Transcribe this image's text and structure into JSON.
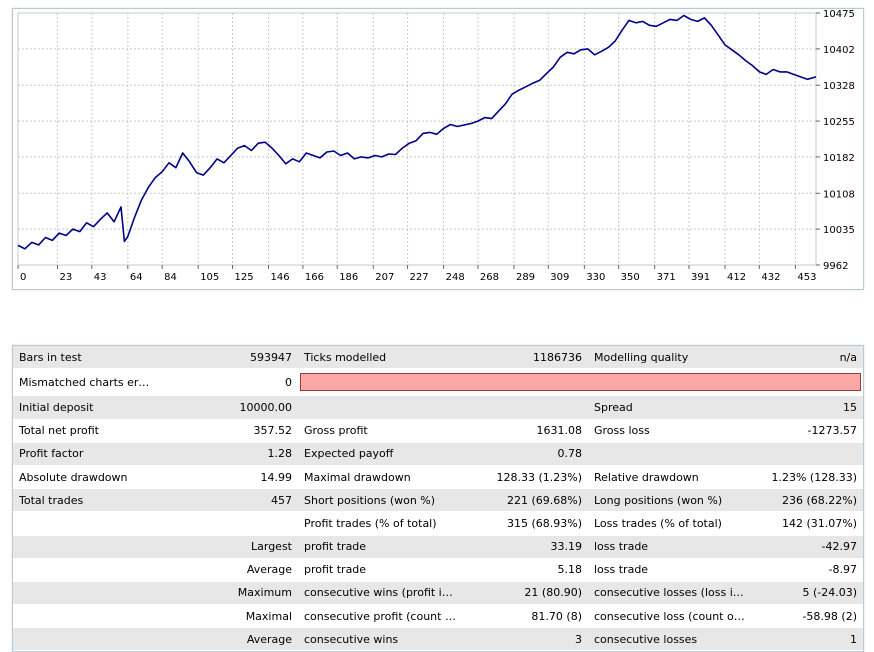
{
  "chart_data": {
    "type": "line",
    "x_ticks": [
      "0",
      "23",
      "43",
      "64",
      "84",
      "105",
      "125",
      "146",
      "166",
      "186",
      "207",
      "227",
      "248",
      "268",
      "289",
      "309",
      "330",
      "350",
      "371",
      "391",
      "412",
      "432",
      "453"
    ],
    "y_ticks": [
      "10475",
      "10402",
      "10328",
      "10255",
      "10182",
      "10108",
      "10035",
      "9962"
    ],
    "ylim": [
      9962,
      10475
    ],
    "xlim": [
      0,
      465
    ],
    "grid": true,
    "series": [
      {
        "color": "#00008b",
        "x": [
          0,
          4,
          8,
          12,
          16,
          20,
          24,
          28,
          32,
          36,
          40,
          44,
          48,
          52,
          56,
          60,
          62,
          64,
          68,
          72,
          76,
          80,
          84,
          88,
          92,
          96,
          100,
          104,
          108,
          112,
          116,
          120,
          124,
          128,
          132,
          136,
          140,
          144,
          148,
          152,
          156,
          160,
          164,
          168,
          172,
          176,
          180,
          184,
          188,
          192,
          196,
          200,
          204,
          208,
          212,
          216,
          220,
          224,
          228,
          232,
          236,
          240,
          244,
          248,
          252,
          256,
          260,
          264,
          268,
          272,
          276,
          280,
          284,
          288,
          292,
          296,
          300,
          304,
          308,
          312,
          316,
          320,
          324,
          328,
          332,
          336,
          340,
          344,
          348,
          352,
          356,
          360,
          364,
          368,
          372,
          376,
          380,
          384,
          388,
          392,
          396,
          400,
          404,
          408,
          412,
          416,
          420,
          424,
          428,
          432,
          436,
          440,
          444,
          448,
          452,
          456,
          460,
          465
        ],
        "y": [
          10002,
          9995,
          10008,
          10003,
          10018,
          10012,
          10027,
          10022,
          10035,
          10030,
          10048,
          10040,
          10055,
          10068,
          10050,
          10080,
          10010,
          10020,
          10060,
          10095,
          10120,
          10140,
          10152,
          10170,
          10160,
          10190,
          10172,
          10150,
          10145,
          10160,
          10178,
          10170,
          10185,
          10200,
          10205,
          10195,
          10210,
          10212,
          10200,
          10185,
          10168,
          10178,
          10172,
          10190,
          10185,
          10180,
          10192,
          10194,
          10185,
          10190,
          10178,
          10182,
          10180,
          10185,
          10182,
          10188,
          10187,
          10200,
          10210,
          10215,
          10230,
          10232,
          10228,
          10240,
          10248,
          10244,
          10247,
          10250,
          10255,
          10262,
          10260,
          10275,
          10290,
          10310,
          10318,
          10325,
          10332,
          10338,
          10352,
          10365,
          10385,
          10395,
          10392,
          10400,
          10402,
          10390,
          10397,
          10405,
          10418,
          10440,
          10460,
          10455,
          10458,
          10450,
          10448,
          10455,
          10462,
          10460,
          10470,
          10462,
          10458,
          10465,
          10450,
          10430,
          10410,
          10400,
          10390,
          10378,
          10368,
          10355,
          10350,
          10360,
          10355,
          10355,
          10350,
          10345,
          10340,
          10345
        ],
        "width": 1.6
      }
    ]
  },
  "report": {
    "rows": [
      {
        "shade": true,
        "c1": "Bars in test",
        "c2": "593947",
        "c3": "Ticks modelled",
        "c4": "1186736",
        "c5": "Modelling quality",
        "c6": "n/a"
      },
      {
        "shade": false,
        "c1": "Mismatched charts errors",
        "c2": "0",
        "bar": true
      },
      {
        "shade": true,
        "c1": "Initial deposit",
        "c2": "10000.00",
        "c3": "",
        "c4": "",
        "c5": "Spread",
        "c6": "15"
      },
      {
        "shade": false,
        "c1": "Total net profit",
        "c2": "357.52",
        "c3": "Gross profit",
        "c4": "1631.08",
        "c5": "Gross loss",
        "c6": "-1273.57"
      },
      {
        "shade": true,
        "c1": "Profit factor",
        "c2": "1.28",
        "c3": "Expected payoff",
        "c4": "0.78",
        "c5": "",
        "c6": ""
      },
      {
        "shade": false,
        "c1": "Absolute drawdown",
        "c2": "14.99",
        "c3": "Maximal drawdown",
        "c4": "128.33 (1.23%)",
        "c5": "Relative drawdown",
        "c6": "1.23% (128.33)"
      },
      {
        "shade": true,
        "c1": "Total trades",
        "c2": "457",
        "c3": "Short positions (won %)",
        "c4": "221 (69.68%)",
        "c5": "Long positions (won %)",
        "c6": "236 (68.22%)"
      },
      {
        "shade": false,
        "c1": "",
        "c2": "",
        "c3": "Profit trades (% of total)",
        "c4": "315 (68.93%)",
        "c5": "Loss trades (% of total)",
        "c6": "142 (31.07%)"
      },
      {
        "shade": true,
        "c1": "",
        "c2": "Largest",
        "c3": "profit trade",
        "c4": "33.19",
        "c5": "loss trade",
        "c6": "-42.97"
      },
      {
        "shade": false,
        "c1": "",
        "c2": "Average",
        "c3": "profit trade",
        "c4": "5.18",
        "c5": "loss trade",
        "c6": "-8.97"
      },
      {
        "shade": true,
        "c1": "",
        "c2": "Maximum",
        "c3": "consecutive wins (profit in ...",
        "c4": "21 (80.90)",
        "c5": "consecutive losses (loss in ...",
        "c6": "5 (-24.03)"
      },
      {
        "shade": false,
        "c1": "",
        "c2": "Maximal",
        "c3": "consecutive profit (count o...",
        "c4": "81.70 (8)",
        "c5": "consecutive loss (count of l...",
        "c6": "-58.98 (2)"
      },
      {
        "shade": true,
        "c1": "",
        "c2": "Average",
        "c3": "consecutive wins",
        "c4": "3",
        "c5": "consecutive losses",
        "c6": "1"
      }
    ]
  }
}
